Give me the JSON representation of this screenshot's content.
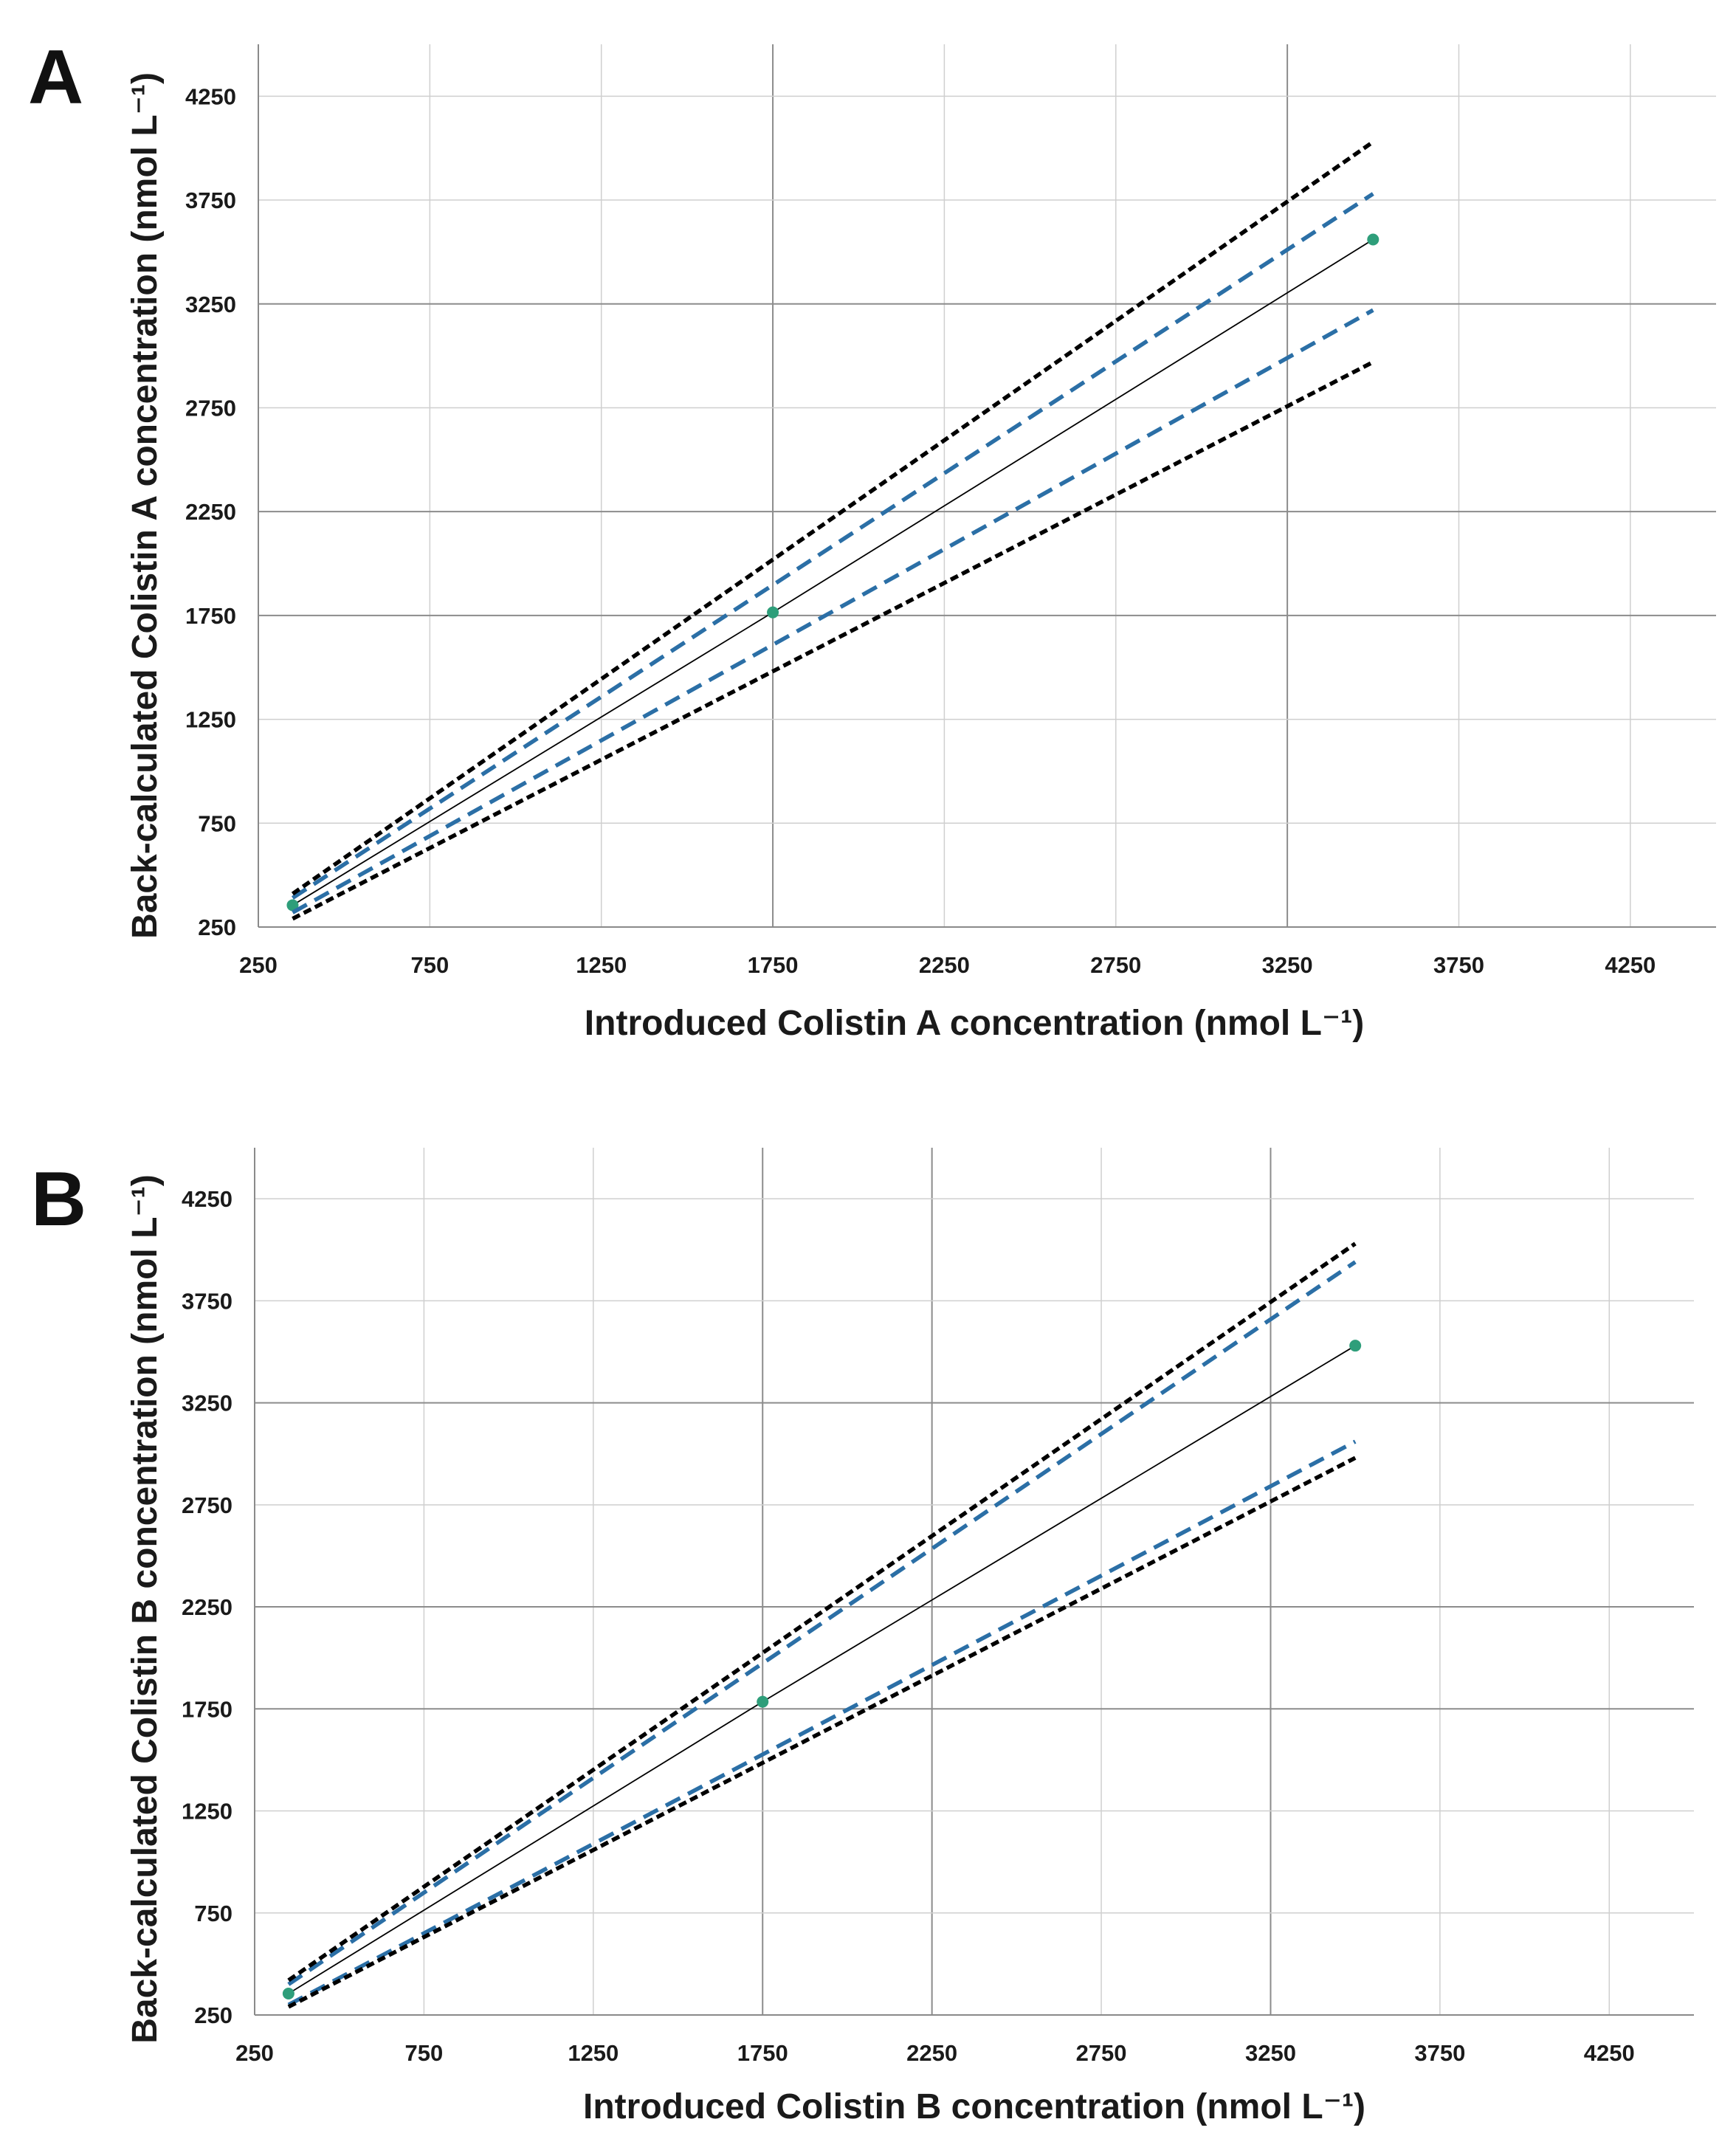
{
  "chart_data": [
    {
      "type": "line",
      "panel_label": "A",
      "xlabel": "Introduced Colistin A concentration (nmol L⁻¹)",
      "ylabel": "Back-calculated Colistin A concentration (nmol L⁻¹)",
      "xlim": [
        250,
        4500
      ],
      "ylim": [
        250,
        4500
      ],
      "xticks": [
        "250",
        "750",
        "1250",
        "1750",
        "2250",
        "2750",
        "3250",
        "3750",
        "4250"
      ],
      "yticks": [
        "250",
        "750",
        "1250",
        "1750",
        "2250",
        "2750",
        "3250",
        "3750",
        "4250"
      ],
      "grid": true,
      "series": [
        {
          "name": "measured",
          "style": "solid-markers",
          "color": "#000000",
          "marker_color": "#2e9e7a",
          "x": [
            350,
            1750,
            3500
          ],
          "y": [
            355,
            1765,
            3560
          ]
        },
        {
          "name": "upper-blue",
          "style": "dashed",
          "color": "#2b6fa6",
          "x": [
            350,
            3500
          ],
          "y": [
            390,
            3780
          ]
        },
        {
          "name": "lower-blue",
          "style": "dashed",
          "color": "#2b6fa6",
          "x": [
            350,
            3500
          ],
          "y": [
            320,
            3220
          ]
        },
        {
          "name": "upper-black",
          "style": "dotted",
          "color": "#000000",
          "x": [
            350,
            3500
          ],
          "y": [
            410,
            4030
          ]
        },
        {
          "name": "lower-black",
          "style": "dotted",
          "color": "#000000",
          "x": [
            350,
            3500
          ],
          "y": [
            290,
            2970
          ]
        }
      ]
    },
    {
      "type": "line",
      "panel_label": "B",
      "xlabel": "Introduced Colistin B concentration (nmol L⁻¹)",
      "ylabel": "Back-calculated Colistin B concentration (nmol L⁻¹)",
      "xlim": [
        250,
        4500
      ],
      "ylim": [
        250,
        4500
      ],
      "xticks": [
        "250",
        "750",
        "1250",
        "1750",
        "2250",
        "2750",
        "3250",
        "3750",
        "4250"
      ],
      "yticks": [
        "250",
        "750",
        "1250",
        "1750",
        "2250",
        "2750",
        "3250",
        "3750",
        "4250"
      ],
      "grid": true,
      "series": [
        {
          "name": "measured",
          "style": "solid-markers",
          "color": "#000000",
          "marker_color": "#2e9e7a",
          "x": [
            350,
            1750,
            3500
          ],
          "y": [
            355,
            1785,
            3530
          ]
        },
        {
          "name": "upper-blue",
          "style": "dashed",
          "color": "#2b6fa6",
          "x": [
            350,
            3500
          ],
          "y": [
            400,
            3940
          ]
        },
        {
          "name": "lower-blue",
          "style": "dashed",
          "color": "#2b6fa6",
          "x": [
            350,
            3500
          ],
          "y": [
            300,
            3060
          ]
        },
        {
          "name": "upper-black",
          "style": "dotted",
          "color": "#000000",
          "x": [
            350,
            3500
          ],
          "y": [
            420,
            4030
          ]
        },
        {
          "name": "lower-black",
          "style": "dotted",
          "color": "#000000",
          "x": [
            350,
            3500
          ],
          "y": [
            290,
            2980
          ]
        }
      ]
    }
  ]
}
